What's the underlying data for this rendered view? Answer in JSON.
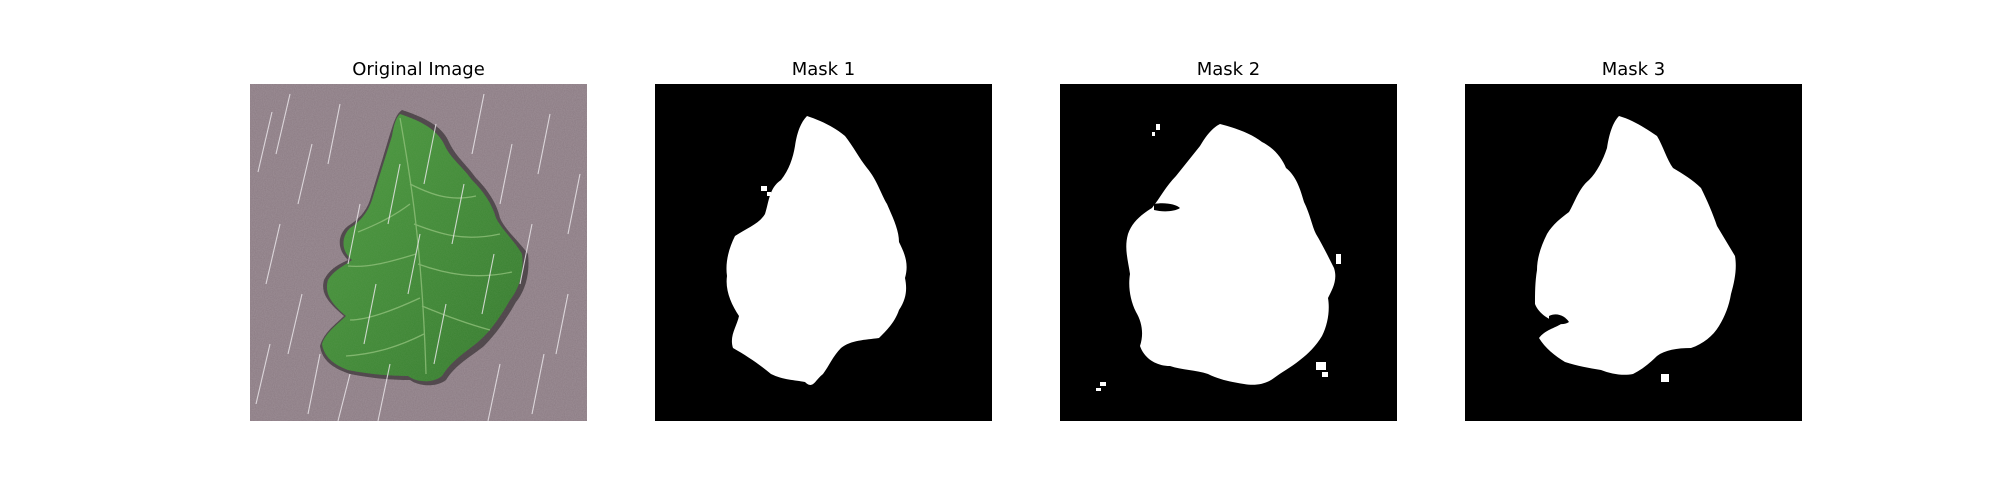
{
  "figure": {
    "panels": [
      {
        "title": "Original Image",
        "content": "leaf-photo"
      },
      {
        "title": "Mask 1",
        "content": "binary-mask"
      },
      {
        "title": "Mask 2",
        "content": "binary-mask"
      },
      {
        "title": "Mask 3",
        "content": "binary-mask"
      }
    ]
  },
  "colors": {
    "background": "#ffffff",
    "mask_background": "#000000",
    "mask_foreground": "#ffffff",
    "ground": "#8a7a82",
    "leaf": "#3f8a34",
    "leaf_dark": "#2a6424",
    "rain": "#e8e4e8"
  }
}
